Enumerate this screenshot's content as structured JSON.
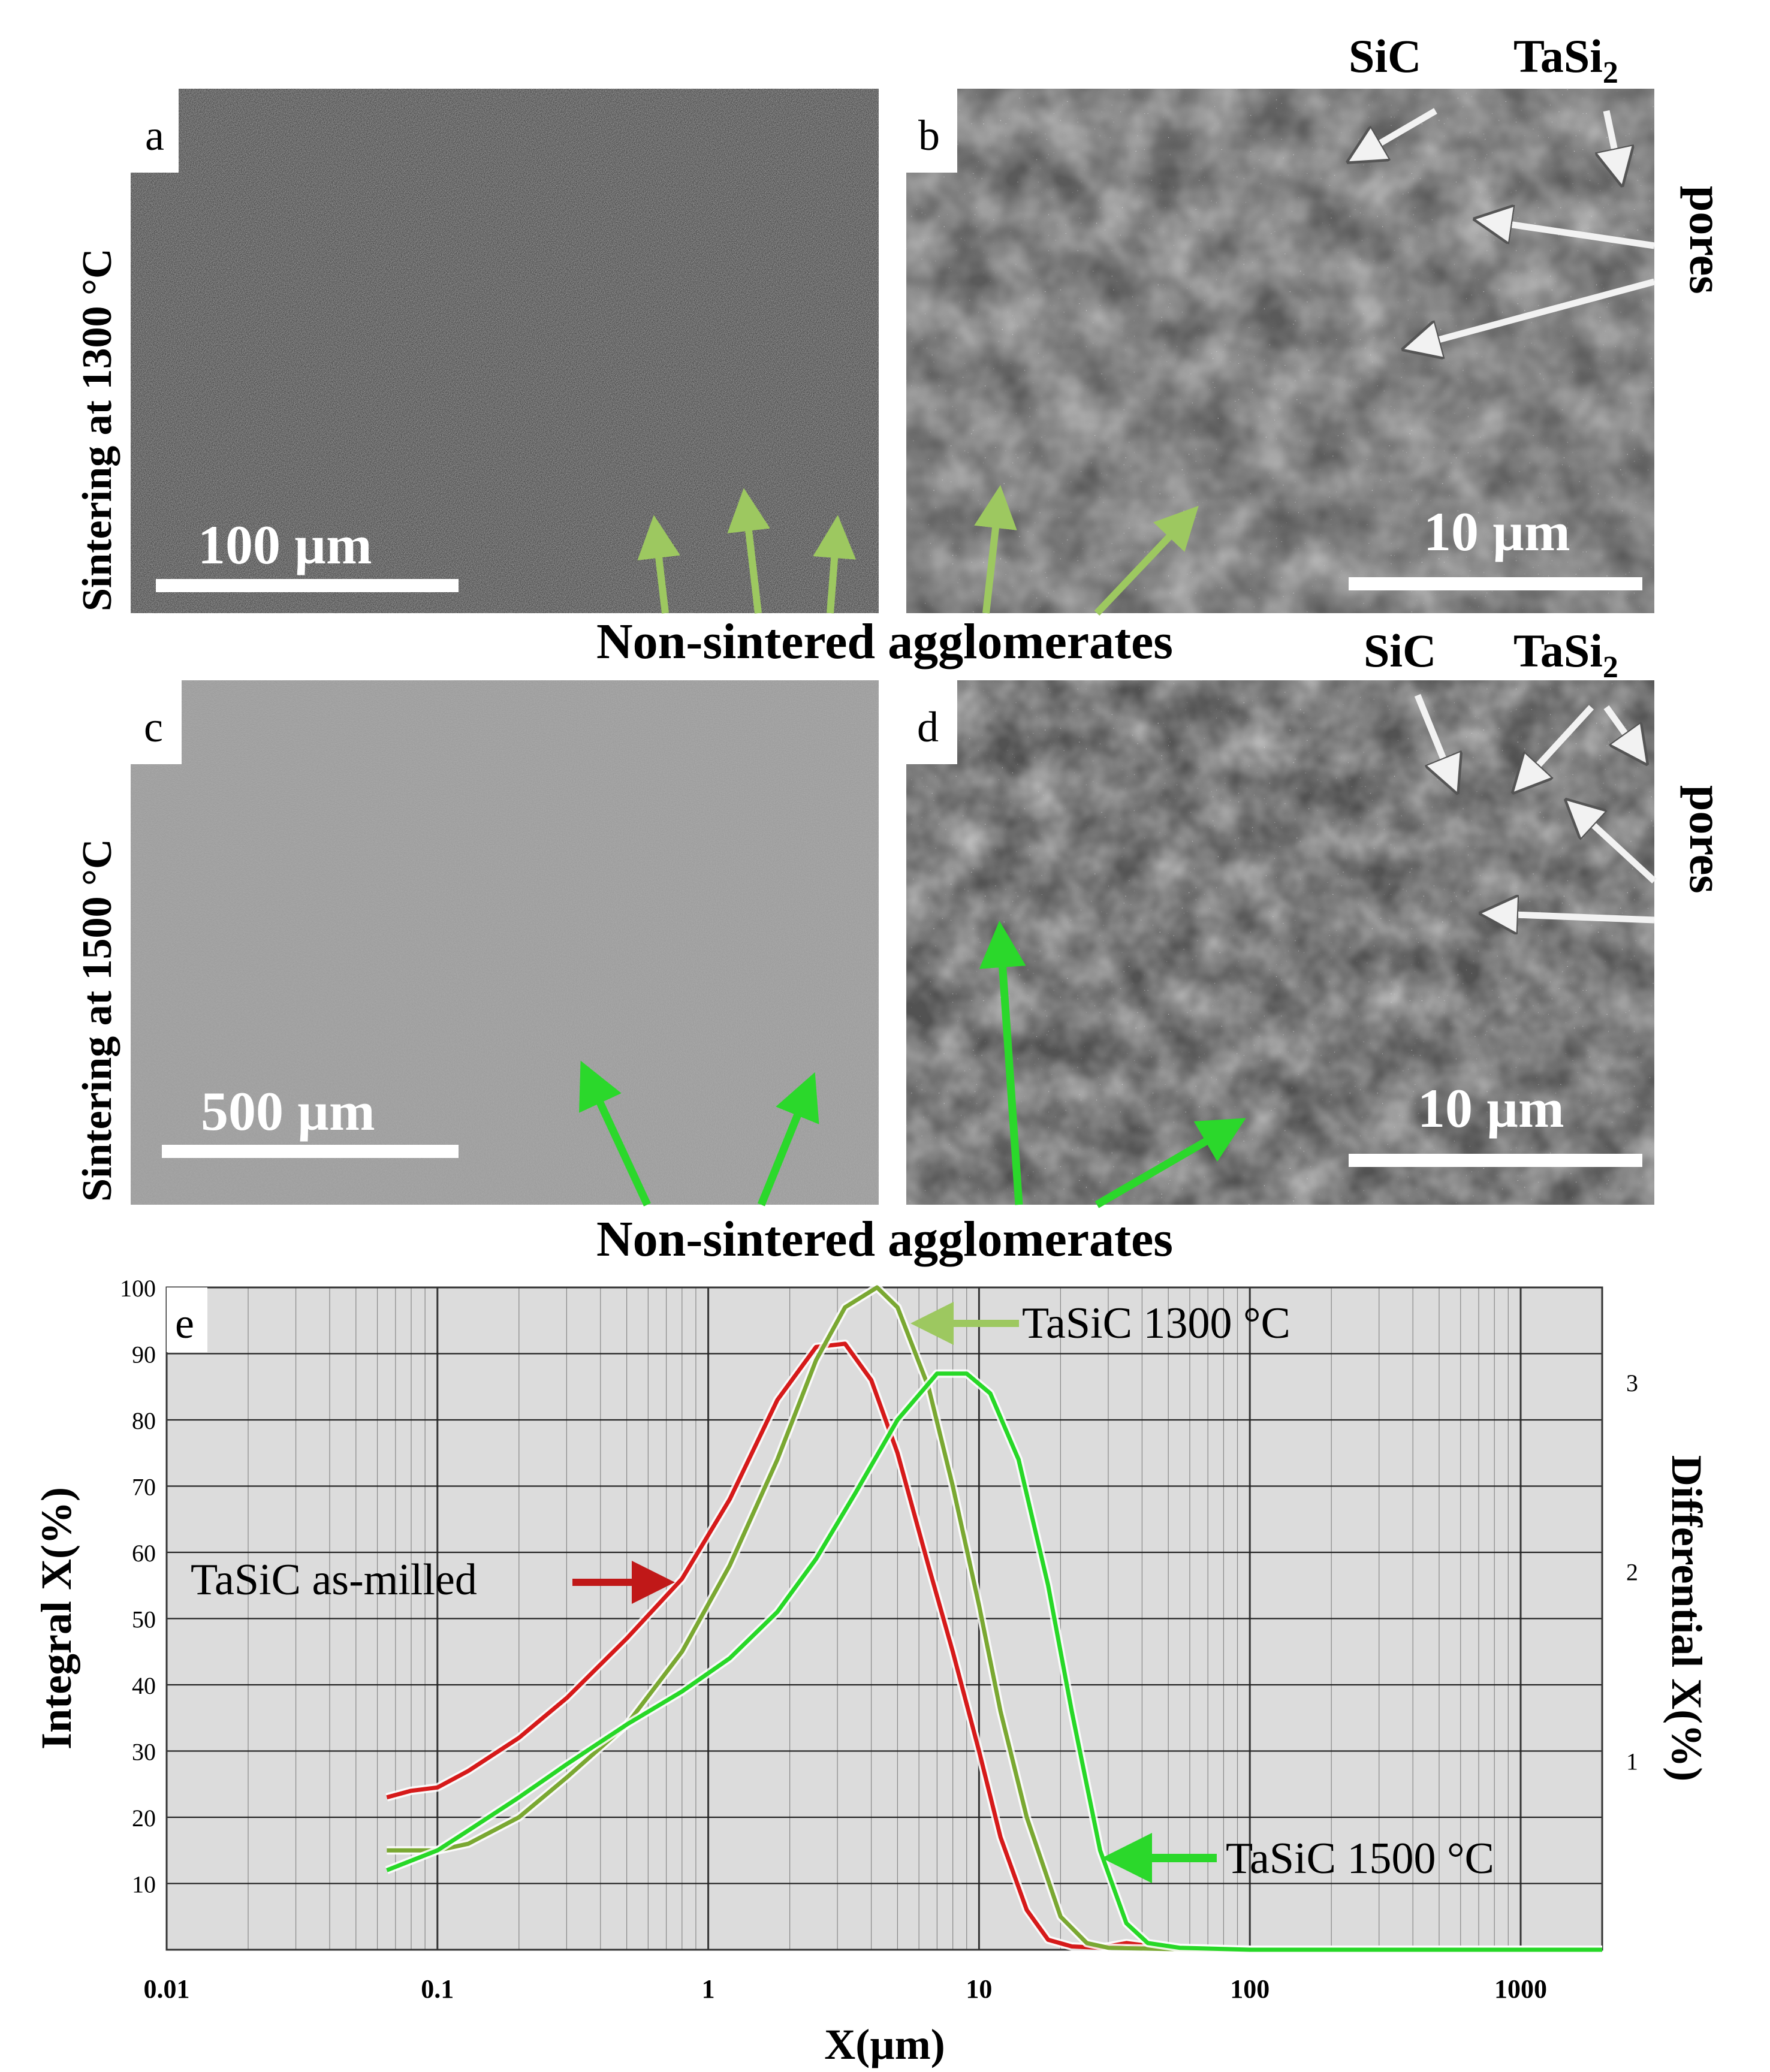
{
  "panels": {
    "a": {
      "letter": "a",
      "scalebar": "100 µm",
      "row_label": "Sintering at 1300 °C"
    },
    "b": {
      "letter": "b",
      "scalebar": "10 µm",
      "sic": "SiC",
      "tasi2": "TaSi",
      "sub": "2",
      "pores": "pores"
    },
    "c": {
      "letter": "c",
      "scalebar": "500 µm",
      "row_label": "Sintering at 1500 °C"
    },
    "d": {
      "letter": "d",
      "scalebar": "10 µm",
      "sic": "SiC",
      "tasi2": "TaSi",
      "sub": "2",
      "pores": "pores"
    },
    "caption_top": "Non-sintered agglomerates",
    "caption_bottom": "Non-sintered agglomerates"
  },
  "colors": {
    "as_milled": "#d61a1a",
    "t1300": "#7aa832",
    "t1500": "#27d827",
    "plot_bg": "#dcdcdc",
    "grid": "#222222",
    "arrow_olive": "#9dc860",
    "arrow_green": "#2bd82b"
  },
  "chart_data": {
    "type": "line",
    "panel_letter": "e",
    "x_scale": "log",
    "xlim": [
      0.01,
      2000
    ],
    "ylim_left": [
      0,
      100
    ],
    "ylim_right": [
      0,
      3.5
    ],
    "xlabel": "X(µm)",
    "ylabel_left": "Integral X(%)",
    "ylabel_right": "Differential  X(%)",
    "x_ticks": [
      "0.01",
      "0.1",
      "1",
      "10",
      "100",
      "1000"
    ],
    "x_tick_values": [
      0.01,
      0.1,
      1,
      10,
      100,
      1000
    ],
    "y_left_ticks": [
      10,
      20,
      30,
      40,
      50,
      60,
      70,
      80,
      90,
      100
    ],
    "y_right_ticks": [
      1,
      2,
      3
    ],
    "grid": true,
    "series": [
      {
        "name": "TaSiC as-milled",
        "x": [
          0.065,
          0.08,
          0.1,
          0.13,
          0.2,
          0.3,
          0.5,
          0.8,
          1.2,
          1.8,
          2.5,
          3.2,
          4.0,
          5.0,
          6.5,
          8.0,
          10,
          12,
          15,
          18,
          22,
          28,
          35,
          50,
          100,
          500,
          2000
        ],
        "y": [
          23,
          24,
          24.5,
          27,
          32,
          38,
          47,
          56,
          68,
          83,
          91,
          91.5,
          86,
          75,
          58,
          45,
          30,
          17,
          6,
          1.5,
          0.5,
          0.3,
          1,
          0.2,
          0,
          0,
          0
        ]
      },
      {
        "name": "TaSiC 1300 °C",
        "x": [
          0.065,
          0.1,
          0.13,
          0.2,
          0.3,
          0.5,
          0.8,
          1.2,
          1.8,
          2.5,
          3.2,
          4.2,
          5.0,
          6.5,
          8.0,
          10,
          12,
          15,
          20,
          25,
          30,
          50,
          100,
          500,
          2000
        ],
        "y": [
          15,
          15,
          16,
          20,
          26,
          34,
          45,
          58,
          74,
          89,
          97,
          100,
          97,
          85,
          70,
          52,
          36,
          20,
          5,
          1,
          0.3,
          0.1,
          0,
          0,
          0
        ]
      },
      {
        "name": "TaSiC 1500 °C",
        "x": [
          0.065,
          0.1,
          0.13,
          0.2,
          0.3,
          0.5,
          0.8,
          1.2,
          1.8,
          2.5,
          3.5,
          5.0,
          7.0,
          9.0,
          11,
          14,
          18,
          22,
          28,
          35,
          42,
          55,
          100,
          500,
          2000
        ],
        "y": [
          12,
          15,
          18,
          23,
          28,
          34,
          39,
          44,
          51,
          59,
          69,
          80,
          87,
          87,
          84,
          74,
          55,
          36,
          15,
          4,
          1,
          0.3,
          0,
          0,
          0
        ]
      }
    ],
    "annotations": [
      "TaSiC 1300 °C",
      "TaSiC as-milled",
      "TaSiC 1500 °C"
    ]
  }
}
